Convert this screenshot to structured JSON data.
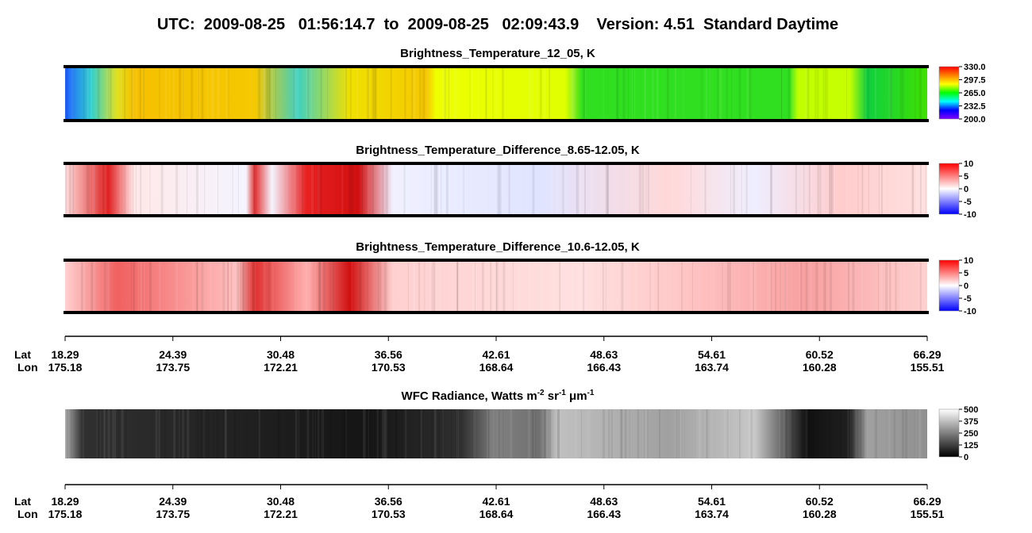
{
  "title": "UTC:  2009-08-25   01:56:14.7  to  2009-08-25   02:09:43.9    Version: 4.51  Standard Daytime",
  "chart_data": [
    {
      "type": "heatmap",
      "title": "Brightness_Temperature_12_05, K",
      "zlim": [
        200,
        330
      ],
      "zticks": [
        {
          "value": 200,
          "label": "200.0"
        },
        232.5,
        {
          "value": 265,
          "label": "265.0"
        },
        297.5,
        {
          "value": 330,
          "label": "330.0"
        }
      ],
      "colors": [
        "#8000ff",
        "#0000ff",
        "#00ffff",
        "#00ff00",
        "#ffff00",
        "#ff8000",
        "#ff0000"
      ]
    },
    {
      "type": "heatmap",
      "title": "Brightness_Temperature_Difference_8.65-12.05, K",
      "zlim": [
        -10,
        10
      ],
      "zticks": [
        -10,
        -5,
        0,
        5,
        10
      ],
      "colors": [
        "#0000ff",
        "#ffffff",
        "#ff0000"
      ]
    },
    {
      "type": "heatmap",
      "title": "Brightness_Temperature_Difference_10.6-12.05, K",
      "zlim": [
        -10,
        10
      ],
      "zticks": [
        -10,
        -5,
        0,
        5,
        10
      ],
      "colors": [
        "#0000ff",
        "#ffffff",
        "#ff0000"
      ]
    },
    {
      "type": "heatmap",
      "title_parts": [
        {
          "text": "WFC Radiance, Watts m"
        },
        {
          "sup": "-2"
        },
        {
          "text": " sr"
        },
        {
          "sup": "-1"
        },
        {
          "text": " μm"
        },
        {
          "sup": "-1"
        }
      ],
      "zlim": [
        0,
        500
      ],
      "zticks": [
        0,
        125,
        250,
        375,
        500
      ],
      "colors": [
        "#000000",
        "#ffffff"
      ]
    }
  ],
  "location_axes": [
    {
      "lat_label": "Lat",
      "lon_label": "Lon",
      "lat": [
        18.29,
        24.39,
        30.48,
        36.56,
        42.61,
        48.63,
        54.61,
        60.52,
        66.29
      ],
      "lon": [
        175.18,
        173.75,
        172.21,
        170.53,
        168.64,
        166.43,
        163.74,
        160.28,
        155.51
      ]
    },
    {
      "lat_label": "Lat",
      "lon_label": "Lon",
      "lat": [
        18.29,
        24.39,
        30.48,
        36.56,
        42.61,
        48.63,
        54.61,
        60.52,
        66.29
      ],
      "lon": [
        175.18,
        173.75,
        172.21,
        170.53,
        168.64,
        166.43,
        163.74,
        160.28,
        155.51
      ]
    }
  ]
}
